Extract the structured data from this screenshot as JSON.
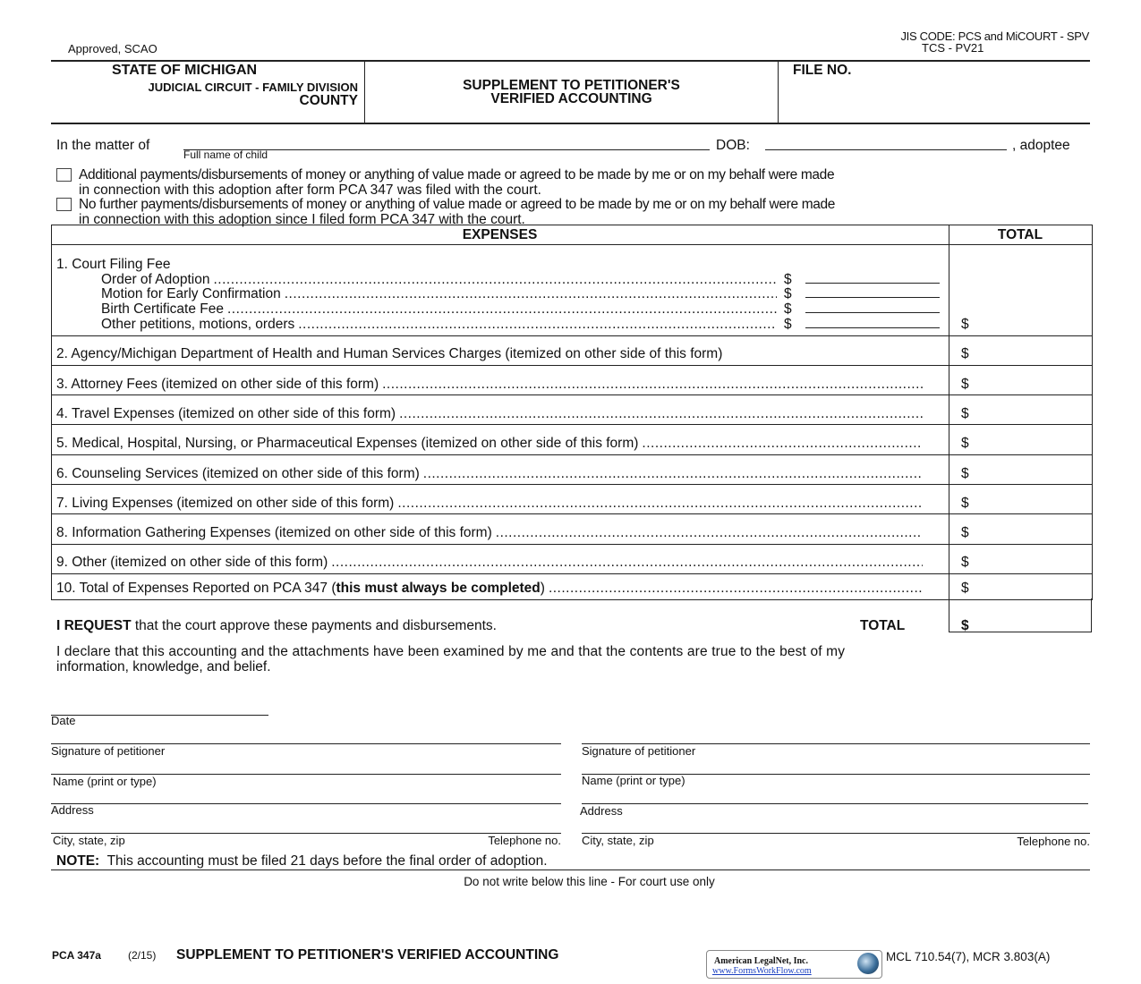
{
  "header": {
    "approved": "Approved, SCAO",
    "jis_code": "JIS CODE: PCS and MiCOURT - SPV",
    "tcs_code": "TCS - PV21",
    "state": "STATE OF MICHIGAN",
    "court": "JUDICIAL CIRCUIT - FAMILY DIVISION",
    "county": "COUNTY",
    "title_line1": "SUPPLEMENT TO PETITIONER'S",
    "title_line2": "VERIFIED ACCOUNTING",
    "file_no": "FILE NO."
  },
  "matter": {
    "prefix": "In the matter of",
    "child_name": "",
    "child_caption": "Full name of child",
    "dob_label": "DOB:",
    "dob": "",
    "suffix": ", adoptee"
  },
  "checkboxes": [
    {
      "checked": false,
      "line1": "Additional payments/disbursements of money or anything of value made or agreed to be made by me or on my behalf were made",
      "line2": "in connection with this adoption after form PCA 347 was filed with the court."
    },
    {
      "checked": false,
      "line1": "No further payments/disbursements of money or anything of value made or agreed to be made by me or on my behalf were made",
      "line2": "in connection with this adoption since I filed form PCA 347 with the court."
    }
  ],
  "table": {
    "col_expenses": "EXPENSES",
    "col_total": "TOTAL",
    "currency": "$",
    "row1": {
      "label": "1. Court Filing Fee",
      "items": [
        "Order of Adoption",
        "Motion for Early Confirmation",
        "Birth Certificate Fee",
        "Other petitions, motions, orders"
      ]
    },
    "rows": [
      "2. Agency/Michigan Department of Health and Human Services Charges (itemized on other side of this form)",
      "3. Attorney Fees (itemized on other side of this form)",
      "4. Travel Expenses (itemized on other side of this form)",
      "5. Medical, Hospital, Nursing, or Pharmaceutical Expenses (itemized on other side of this form)",
      "6. Counseling Services (itemized on other side of this form)",
      "7. Living Expenses (itemized on other side of this form)",
      "8. Information Gathering Expenses (itemized on other side of this form)",
      "9. Other (itemized on other side of this form)"
    ],
    "row10": {
      "pre": "10. Total of Expenses Reported on PCA 347 (",
      "bold": "this must always be completed",
      "post": ")"
    }
  },
  "request": {
    "bold": "I REQUEST",
    "text": " that the court approve these payments and disbursements.",
    "total_label": "TOTAL",
    "currency": "$"
  },
  "declaration": {
    "line1": "I declare that this accounting and the attachments have been examined by me and that the contents are true to the best of my",
    "line2": "information, knowledge, and belief."
  },
  "signature": {
    "date": "Date",
    "sig": "Signature of petitioner",
    "name": "Name (print or type)",
    "address": "Address",
    "city": "City, state, zip",
    "phone": "Telephone no."
  },
  "note": {
    "label": "NOTE:",
    "text": "This accounting must be filed 21 days before the final order of adoption."
  },
  "court_use": "Do not write below this line - For court use only",
  "footer": {
    "form_no": "PCA 347a",
    "rev": "(2/15)",
    "title": "SUPPLEMENT TO PETITIONER'S VERIFIED ACCOUNTING",
    "logo_name": "American LegalNet, Inc.",
    "logo_url": "www.FormsWorkFlow.com",
    "citation": "MCL 710.54(7), MCR 3.803(A)"
  }
}
